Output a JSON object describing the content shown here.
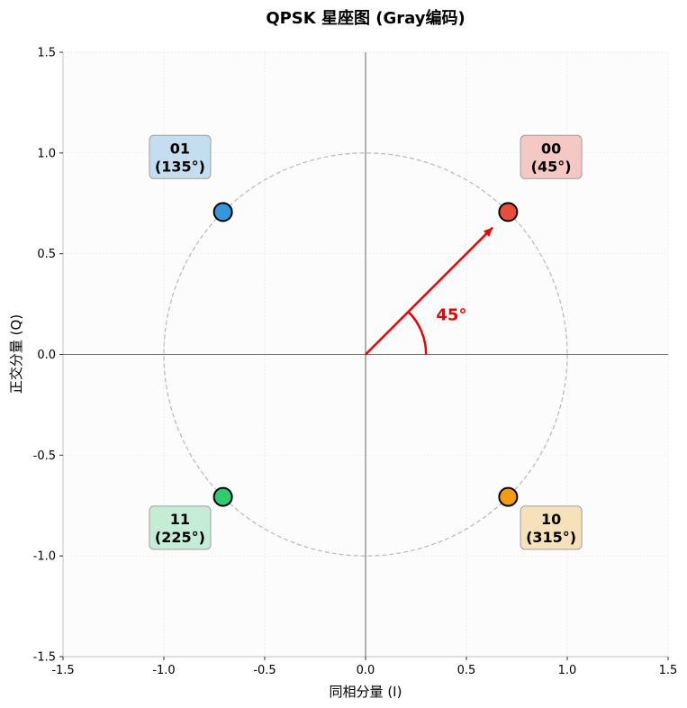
{
  "chart_data": {
    "type": "scatter",
    "title": "QPSK 星座图 (Gray编码)",
    "xlabel": "同相分量 (I)",
    "ylabel": "正交分量 (Q)",
    "xlim": [
      -1.5,
      1.5
    ],
    "ylim": [
      -1.5,
      1.5
    ],
    "xticks": [
      -1.5,
      -1.0,
      -0.5,
      0.0,
      0.5,
      1.0,
      1.5
    ],
    "yticks": [
      -1.5,
      -1.0,
      -0.5,
      0.0,
      0.5,
      1.0,
      1.5
    ],
    "xtick_labels": [
      "-1.5",
      "-1.0",
      "-0.5",
      "0.0",
      "0.5",
      "1.0",
      "1.5"
    ],
    "ytick_labels": [
      "-1.5",
      "-1.0",
      "-0.5",
      "0.0",
      "0.5",
      "1.0",
      "1.5"
    ],
    "grid": true,
    "unit_circle_radius": 1.0,
    "points": [
      {
        "bits": "00",
        "phase": "(45°)",
        "x": 0.707,
        "y": 0.707,
        "color": "#e74c3c",
        "label_bg": "#f5c6c2",
        "label_x": 0.92,
        "label_y": 0.98
      },
      {
        "bits": "01",
        "phase": "(135°)",
        "x": -0.707,
        "y": 0.707,
        "color": "#3498db",
        "label_bg": "#c2ddf0",
        "label_x": -0.92,
        "label_y": 0.98
      },
      {
        "bits": "11",
        "phase": "(225°)",
        "x": -0.707,
        "y": -0.707,
        "color": "#2ecc71",
        "label_bg": "#c3edd4",
        "label_x": -0.92,
        "label_y": -0.86
      },
      {
        "bits": "10",
        "phase": "(315°)",
        "x": 0.707,
        "y": -0.707,
        "color": "#f39c12",
        "label_bg": "#f7e0b8",
        "label_x": 0.92,
        "label_y": -0.86
      }
    ],
    "phase_arrow": {
      "x": 0.63,
      "y": 0.63,
      "color": "#ee0000"
    },
    "angle_arc": {
      "radius": 0.3,
      "start_deg": 0,
      "end_deg": 45,
      "color": "#ee0000"
    },
    "angle_annotation": {
      "text": "45°",
      "x": 0.35,
      "y": 0.17,
      "color": "#ee0000"
    }
  }
}
